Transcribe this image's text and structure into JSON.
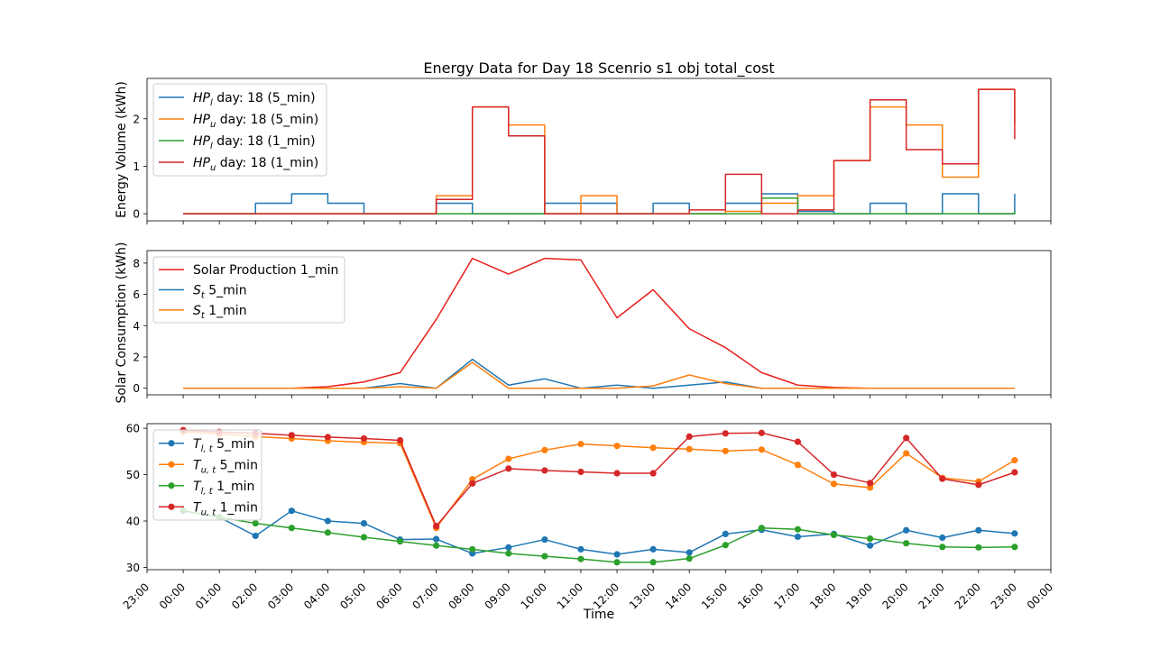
{
  "chart_data": {
    "type": "line",
    "title": "Energy Data for Day 18 Scenrio s1 obj total_cost",
    "xlabel": "Time",
    "x_ticks": [
      "23:00",
      "00:00",
      "01:00",
      "02:00",
      "03:00",
      "04:00",
      "05:00",
      "06:00",
      "07:00",
      "08:00",
      "09:00",
      "10:00",
      "11:00",
      "12:00",
      "13:00",
      "14:00",
      "15:00",
      "16:00",
      "17:00",
      "18:00",
      "19:00",
      "20:00",
      "21:00",
      "22:00",
      "23:00",
      "00:00"
    ],
    "x_hours": [
      0,
      1,
      2,
      3,
      4,
      5,
      6,
      7,
      8,
      9,
      10,
      11,
      12,
      13,
      14,
      15,
      16,
      17,
      18,
      19,
      20,
      21,
      22,
      23
    ],
    "xlim": [
      -1,
      24
    ],
    "panels": [
      {
        "ylabel": "Energy Volume (kWh)",
        "ylim": [
          -0.15,
          2.85
        ],
        "yticks": [
          0,
          1,
          2
        ],
        "step": true,
        "legend": "upper left",
        "series": [
          {
            "name_base": "HP",
            "name_sub": "l",
            "name_tail": " day: 18 (5_min)",
            "color": "#1f77b4",
            "values": [
              0,
              0,
              0.22,
              0.42,
              0.22,
              0,
              0,
              0.22,
              0,
              0,
              0.22,
              0.22,
              0,
              0.22,
              0,
              0.22,
              0.42,
              0.05,
              0,
              0.22,
              0,
              0.42,
              0,
              0.42
            ]
          },
          {
            "name_base": "HP",
            "name_sub": "u",
            "name_tail": " day: 18 (5_min)",
            "color": "#ff7f0e",
            "values": [
              0,
              0,
              0,
              0,
              0,
              0,
              0,
              0.38,
              2.25,
              1.87,
              0,
              0.38,
              0,
              0,
              0,
              0.05,
              0.22,
              0.38,
              1.12,
              2.25,
              1.87,
              0.77,
              2.62,
              1.87
            ]
          },
          {
            "name_base": "HP",
            "name_sub": "l",
            "name_tail": " day: 18 (1_min)",
            "color": "#2ca02c",
            "values": [
              0,
              0,
              0,
              0,
              0,
              0,
              0,
              0,
              0,
              0,
              0,
              0,
              0,
              0,
              0,
              0,
              0.33,
              0,
              0,
              0,
              0,
              0,
              0,
              0.05
            ]
          },
          {
            "name_base": "HP",
            "name_sub": "u",
            "name_tail": " day: 18 (1_min)",
            "color": "#d62728",
            "values": [
              0,
              0,
              0,
              0,
              0,
              0,
              0,
              0.3,
              2.25,
              1.64,
              0,
              0,
              0,
              0,
              0.08,
              0.83,
              0,
              0.08,
              1.12,
              2.4,
              1.35,
              1.05,
              2.62,
              1.57
            ]
          }
        ]
      },
      {
        "ylabel": "Solar Consumption (kWh)",
        "ylim": [
          -0.42,
          8.8
        ],
        "yticks": [
          0,
          2,
          4,
          6,
          8
        ],
        "step": false,
        "legend": "upper left",
        "series": [
          {
            "name_base": "Solar Production 1_min",
            "name_sub": "",
            "name_tail": "",
            "color": "#e8201a",
            "values": [
              0,
              0,
              0,
              0,
              0.1,
              0.4,
              1.0,
              4.4,
              8.3,
              7.3,
              8.3,
              8.2,
              4.5,
              6.3,
              3.8,
              2.6,
              1.0,
              0.2,
              0.05,
              0,
              0,
              0,
              0,
              0
            ]
          },
          {
            "name_base": "S",
            "name_sub": "t",
            "name_tail": " 5_min",
            "color": "#1f77b4",
            "values": [
              0,
              0,
              0,
              0,
              0,
              0,
              0.3,
              0,
              1.85,
              0.2,
              0.6,
              0,
              0.2,
              0,
              0.2,
              0.4,
              0,
              0,
              0,
              0,
              0,
              0,
              0,
              0
            ]
          },
          {
            "name_base": "S",
            "name_sub": "t",
            "name_tail": " 1_min",
            "color": "#ff7f0e",
            "values": [
              0,
              0,
              0,
              0,
              0,
              0,
              0.1,
              0,
              1.65,
              0,
              0,
              0,
              0,
              0.15,
              0.85,
              0.3,
              0,
              0,
              0,
              0,
              0,
              0,
              0,
              0
            ]
          }
        ]
      },
      {
        "ylabel": "",
        "ylim": [
          29.5,
          61
        ],
        "yticks": [
          30,
          40,
          50,
          60
        ],
        "step": false,
        "markers": true,
        "legend": "upper left",
        "series": [
          {
            "name_base": "T",
            "name_sub": "l, t",
            "name_tail": " 5_min",
            "color": "#1f77b4",
            "values": [
              42.2,
              40.8,
              36.8,
              42.2,
              40,
              39.5,
              36,
              36.1,
              33,
              34.3,
              36,
              33.9,
              32.8,
              33.9,
              33.2,
              37.2,
              38.1,
              36.6,
              37.2,
              34.7,
              38,
              36.4,
              38,
              37.3
            ]
          },
          {
            "name_base": "T",
            "name_sub": "u, t",
            "name_tail": " 5_min",
            "color": "#ff7f0e",
            "values": [
              59.3,
              58.8,
              58.2,
              57.8,
              57.3,
              57,
              56.8,
              38.5,
              49,
              53.4,
              55.3,
              56.6,
              56.2,
              55.8,
              55.5,
              55.1,
              55.4,
              52.1,
              48,
              47.2,
              54.6,
              49.3,
              48.5,
              53.1
            ]
          },
          {
            "name_base": "T",
            "name_sub": "l, t",
            "name_tail": " 1_min",
            "color": "#2ca02c",
            "values": [
              42.2,
              40.8,
              39.5,
              38.5,
              37.5,
              36.5,
              35.6,
              34.7,
              33.9,
              33,
              32.4,
              31.8,
              31.1,
              31.1,
              31.9,
              34.8,
              38.5,
              38.2,
              37,
              36.2,
              35.2,
              34.4,
              34.3,
              34.4
            ]
          },
          {
            "name_base": "T",
            "name_sub": "u, t",
            "name_tail": " 1_min",
            "color": "#d62728",
            "values": [
              59.6,
              59.2,
              58.9,
              58.5,
              58.1,
              57.8,
              57.4,
              38.9,
              48.1,
              51.3,
              50.9,
              50.6,
              50.3,
              50.3,
              58.2,
              58.9,
              59,
              57.1,
              50,
              48.2,
              57.9,
              49.1,
              47.8,
              50.5
            ]
          }
        ]
      }
    ]
  }
}
